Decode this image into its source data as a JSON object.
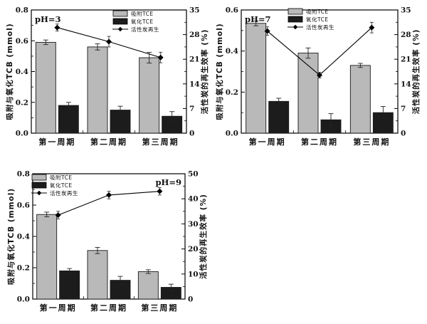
{
  "figure": {
    "background": "#ffffff",
    "description_colors": {
      "adsorb_bar": "#b9b9b9",
      "oxidize_bar": "#1c1c1c",
      "line": "#000000",
      "axis": "#000000"
    }
  },
  "chart_data": [
    {
      "id": "ph3",
      "type": "bar+line",
      "ph_label": "pH=3",
      "ph_label_position": "top-left",
      "legend_position": "top-center",
      "categories": [
        "第一周期",
        "第二周期",
        "第三周期"
      ],
      "left_axis": {
        "label": "吸附与氧化TCB (mmol)",
        "min": 0,
        "max": 0.8,
        "tick_values": [
          0,
          0.2,
          0.4,
          0.6,
          0.8
        ],
        "tick_labels": [
          "0.0",
          "0.2",
          "0.4",
          "0.6",
          "0.8"
        ]
      },
      "right_axis": {
        "label": "活性炭的再生效率 (%)",
        "min": 0,
        "max": 35,
        "tick_values": [
          0,
          7,
          14,
          21,
          28,
          35
        ],
        "tick_labels": [
          "0",
          "7",
          "14",
          "21",
          "28",
          "35"
        ]
      },
      "series": [
        {
          "name": "吸附TCE",
          "type": "bar",
          "axis": "left",
          "color": "#b9b9b9",
          "values": [
            0.59,
            0.56,
            0.49
          ],
          "errors": [
            0.015,
            0.02,
            0.035
          ]
        },
        {
          "name": "氧化TCE",
          "type": "bar",
          "axis": "left",
          "color": "#1c1c1c",
          "values": [
            0.18,
            0.15,
            0.11
          ],
          "errors": [
            0.02,
            0.025,
            0.03
          ]
        },
        {
          "name": "活性炭再生",
          "type": "line",
          "axis": "right",
          "marker": "diamond",
          "color": "#000000",
          "values": [
            30,
            26,
            21.5
          ],
          "errors": [
            1,
            1.5,
            1.5
          ]
        }
      ]
    },
    {
      "id": "ph7",
      "type": "bar+line",
      "ph_label": "pH=7",
      "ph_label_position": "top-left",
      "legend_position": "top-center",
      "categories": [
        "第一周期",
        "第二周期",
        "第三周期"
      ],
      "left_axis": {
        "label": "吸附与氧化TCB (mmol)",
        "min": 0,
        "max": 0.6,
        "tick_values": [
          0,
          0.2,
          0.4,
          0.6
        ],
        "tick_labels": [
          "0.0",
          "0.2",
          "0.4",
          "0.6"
        ]
      },
      "right_axis": {
        "label": "活性炭的再生效率 (%)",
        "min": 0,
        "max": 35,
        "tick_values": [
          0,
          7,
          14,
          21,
          28,
          35
        ],
        "tick_labels": [
          "0",
          "7",
          "14",
          "21",
          "28",
          "35"
        ]
      },
      "series": [
        {
          "name": "吸附TCE",
          "type": "bar",
          "axis": "left",
          "color": "#b9b9b9",
          "values": [
            0.535,
            0.39,
            0.33
          ],
          "errors": [
            0.012,
            0.025,
            0.01
          ]
        },
        {
          "name": "氧化TCE",
          "type": "bar",
          "axis": "left",
          "color": "#1c1c1c",
          "values": [
            0.155,
            0.065,
            0.1
          ],
          "errors": [
            0.015,
            0.03,
            0.03
          ]
        },
        {
          "name": "活性炭再生",
          "type": "line",
          "axis": "right",
          "marker": "diamond",
          "color": "#000000",
          "values": [
            29,
            16.5,
            30
          ],
          "errors": [
            1.2,
            0.8,
            1.5
          ]
        }
      ]
    },
    {
      "id": "ph9",
      "type": "bar+line",
      "ph_label": "pH=9",
      "ph_label_position": "top-right",
      "legend_position": "top-left",
      "categories": [
        "第一周期",
        "第二周期",
        "第三周期"
      ],
      "left_axis": {
        "label": "吸附与氧化TCB (mmol)",
        "min": 0,
        "max": 0.8,
        "tick_values": [
          0,
          0.2,
          0.4,
          0.6,
          0.8
        ],
        "tick_labels": [
          "0.0",
          "0.2",
          "0.4",
          "0.6",
          "0.8"
        ]
      },
      "right_axis": {
        "label": "活性炭的再生效率 (%)",
        "min": 0,
        "max": 50,
        "tick_values": [
          0,
          10,
          20,
          30,
          40,
          50
        ],
        "tick_labels": [
          "0",
          "10",
          "20",
          "30",
          "40",
          "50"
        ]
      },
      "series": [
        {
          "name": "吸附TCE",
          "type": "bar",
          "axis": "left",
          "color": "#b9b9b9",
          "values": [
            0.54,
            0.31,
            0.175
          ],
          "errors": [
            0.015,
            0.02,
            0.012
          ]
        },
        {
          "name": "氧化TCE",
          "type": "bar",
          "axis": "left",
          "color": "#1c1c1c",
          "values": [
            0.18,
            0.12,
            0.075
          ],
          "errors": [
            0.015,
            0.025,
            0.02
          ]
        },
        {
          "name": "活性炭再生",
          "type": "line",
          "axis": "right",
          "marker": "diamond",
          "color": "#000000",
          "values": [
            33.5,
            41.5,
            43
          ],
          "errors": [
            1.5,
            1.5,
            1.5
          ]
        }
      ]
    }
  ]
}
